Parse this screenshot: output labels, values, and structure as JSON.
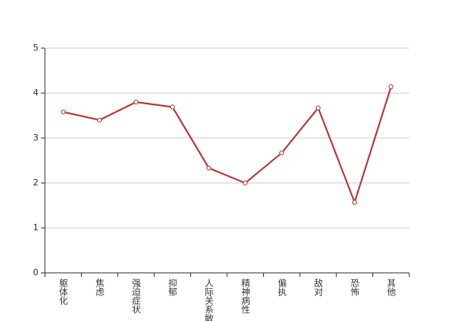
{
  "chart_data": {
    "type": "line",
    "categories": [
      "躯体化",
      "焦虑",
      "强迫症状",
      "抑郁",
      "人际关系敏感",
      "精神病性",
      "偏执",
      "敌对",
      "恐怖",
      "其他"
    ],
    "series": [
      {
        "color": "#b83232",
        "values": [
          3.58,
          3.4,
          3.8,
          3.69,
          2.33,
          2.0,
          2.67,
          3.67,
          1.57,
          4.14
        ]
      }
    ],
    "ylim": [
      0,
      5
    ],
    "yticks": [
      0,
      1,
      2,
      3,
      4,
      5
    ],
    "grid": true
  }
}
